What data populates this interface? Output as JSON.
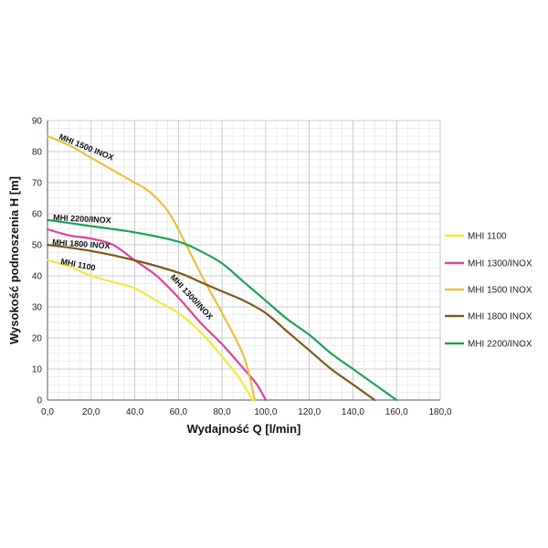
{
  "chart_data": {
    "type": "line",
    "xlabel": "Wydajność Q [l/min]",
    "ylabel": "Wysokość podnoszenia H [m]",
    "xlim": [
      0,
      180
    ],
    "ylim": [
      0,
      90
    ],
    "xticks": [
      "0,0",
      "20,0",
      "40,0",
      "60,0",
      "80,0",
      "100,0",
      "120,0",
      "140,0",
      "160,0",
      "180,0"
    ],
    "yticks": [
      "0",
      "10",
      "20",
      "30",
      "40",
      "50",
      "60",
      "70",
      "80",
      "90"
    ],
    "grid": true,
    "legend_position": "right",
    "series": [
      {
        "name": "MHI 1100",
        "color": "#f2ea3c",
        "label": "MHI 1100",
        "x": [
          0,
          10,
          20,
          30,
          40,
          50,
          60,
          70,
          80,
          88,
          94
        ],
        "y": [
          45,
          43,
          40,
          38,
          36,
          32,
          28,
          22,
          14,
          7,
          0
        ]
      },
      {
        "name": "MHI 1300/INOX",
        "color": "#d9459a",
        "label": "MHI 1300/INOX",
        "x": [
          0,
          10,
          20,
          30,
          40,
          50,
          60,
          70,
          80,
          90,
          96,
          100
        ],
        "y": [
          55,
          53,
          52,
          50,
          45,
          40,
          33,
          25,
          18,
          10,
          5,
          0
        ]
      },
      {
        "name": "MHI 1500 INOX",
        "color": "#e8c13c",
        "label": "MHI 1500 INOX",
        "x": [
          0,
          10,
          20,
          30,
          40,
          45,
          50,
          55,
          60,
          70,
          80,
          90,
          95
        ],
        "y": [
          85,
          82,
          78,
          74,
          70,
          68,
          65,
          61,
          55,
          41,
          28,
          14,
          0
        ]
      },
      {
        "name": "MHI 1800 INOX",
        "color": "#7a5a1e",
        "label": "MHI 1800 INOX",
        "x": [
          0,
          20,
          40,
          60,
          70,
          80,
          90,
          100,
          110,
          120,
          130,
          140,
          150
        ],
        "y": [
          50,
          48,
          45,
          41,
          38,
          35,
          32,
          28,
          22,
          16,
          10,
          5,
          0
        ]
      },
      {
        "name": "MHI 2200/INOX",
        "color": "#1fa05a",
        "label": "MHI 2200/INOX",
        "x": [
          0,
          20,
          40,
          60,
          70,
          80,
          90,
          100,
          110,
          120,
          130,
          140,
          150,
          160
        ],
        "y": [
          58,
          56,
          54,
          51,
          48,
          44,
          38,
          32,
          26,
          21,
          15,
          10,
          5,
          0
        ]
      }
    ]
  }
}
